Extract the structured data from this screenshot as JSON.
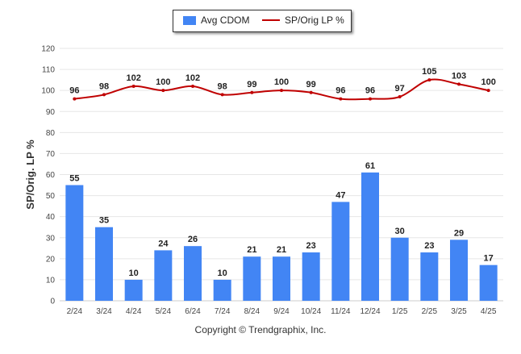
{
  "chart_data": {
    "type": "bar",
    "categories": [
      "2/24",
      "3/24",
      "4/24",
      "5/24",
      "6/24",
      "7/24",
      "8/24",
      "9/24",
      "10/24",
      "11/24",
      "12/24",
      "1/25",
      "2/25",
      "3/25",
      "4/25"
    ],
    "series": [
      {
        "name": "Avg CDOM",
        "type": "bar",
        "color": "#4285f4",
        "values": [
          55,
          35,
          10,
          24,
          26,
          10,
          21,
          21,
          23,
          47,
          61,
          30,
          23,
          29,
          17
        ]
      },
      {
        "name": "SP/Orig LP %",
        "type": "line",
        "color": "#c00000",
        "values": [
          96,
          98,
          102,
          100,
          102,
          98,
          99,
          100,
          99,
          96,
          96,
          97,
          105,
          103,
          100
        ]
      }
    ],
    "ylabel": "SP/Orig. LP %",
    "xlabel": "",
    "ylim": [
      0,
      120
    ],
    "yticks": [
      0,
      10,
      20,
      30,
      40,
      50,
      60,
      70,
      80,
      90,
      100,
      110,
      120
    ],
    "grid": true,
    "legend_position": "top-center"
  },
  "footer": {
    "copyright": "Copyright © Trendgraphix, Inc."
  }
}
